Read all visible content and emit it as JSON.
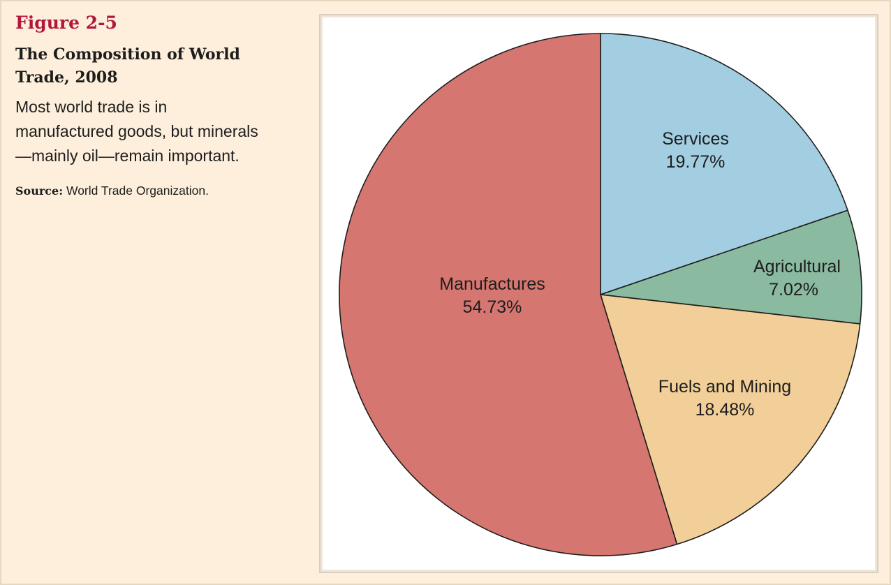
{
  "figure": {
    "label": "Figure 2-5",
    "title": "The Composition of World Trade, 2008",
    "description": "Most world trade is in manufactured goods, but minerals—mainly oil—remain important.",
    "source_label": "Source:",
    "source_text": " World Trade Organization."
  },
  "colors": {
    "background": "#fdefdb",
    "panel": "#ffffff",
    "outline": "#1d1d1d"
  },
  "chart_data": {
    "type": "pie",
    "title": "The Composition of World Trade, 2008",
    "start_angle_deg": 0,
    "direction": "clockwise",
    "slices": [
      {
        "name": "Services",
        "value": 19.77,
        "label": "19.77%",
        "color": "#a3cde1"
      },
      {
        "name": "Agricultural",
        "value": 7.02,
        "label": "7.02%",
        "color": "#8aba9f"
      },
      {
        "name": "Fuels and Mining",
        "value": 18.48,
        "label": "18.48%",
        "color": "#f2cf98"
      },
      {
        "name": "Manufactures",
        "value": 54.73,
        "label": "54.73%",
        "color": "#d57670"
      }
    ]
  }
}
